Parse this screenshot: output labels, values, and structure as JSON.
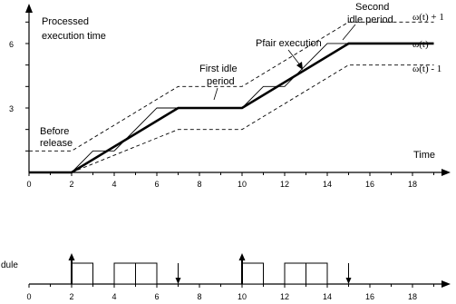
{
  "annotations": {
    "processed_line1": "Processed",
    "processed_line2": "execution time",
    "before_line1": "Before",
    "before_line2": "release",
    "first_idle_line1": "First idle",
    "first_idle_line2": "period",
    "second_idle_line1": "Second",
    "second_idle_line2": "idle period",
    "pfair": "Pfair execution",
    "time": "Time",
    "schedule_label": "dule"
  },
  "legend": {
    "upper": "ω(t) + 1",
    "middle": "ω(t)",
    "lower": "ω(t) - 1"
  },
  "axes": {
    "x_ticks": [
      "0",
      "2",
      "4",
      "6",
      "8",
      "10",
      "12",
      "14",
      "16",
      "18"
    ],
    "y_ticks": [
      "3",
      "6"
    ]
  },
  "chart_data": {
    "type": "line",
    "xlabel": "Time",
    "ylabel": "Processed execution time",
    "xlim": [
      0,
      19
    ],
    "ylim": [
      0,
      7.5
    ],
    "series": [
      {
        "name": "ω(t)",
        "points": [
          [
            0,
            0
          ],
          [
            2,
            0
          ],
          [
            7,
            3
          ],
          [
            10,
            3
          ],
          [
            15,
            6
          ],
          [
            19,
            6
          ]
        ]
      },
      {
        "name": "ω(t) + 1",
        "points": [
          [
            0,
            1
          ],
          [
            2,
            1
          ],
          [
            7,
            4
          ],
          [
            10,
            4
          ],
          [
            15,
            7
          ],
          [
            19,
            7
          ]
        ]
      },
      {
        "name": "ω(t) - 1",
        "points": [
          [
            2,
            0
          ],
          [
            7,
            2
          ],
          [
            10,
            2
          ],
          [
            15,
            5
          ],
          [
            19,
            5
          ]
        ]
      },
      {
        "points": [
          [
            0,
            0
          ],
          [
            2,
            0
          ],
          [
            3,
            1
          ],
          [
            4,
            1
          ],
          [
            6,
            3
          ],
          [
            10,
            3
          ],
          [
            11,
            4
          ],
          [
            12,
            4
          ],
          [
            14,
            6
          ],
          [
            19,
            6
          ]
        ]
      }
    ],
    "schedule": {
      "quanta": [
        [
          2,
          3
        ],
        [
          4,
          5
        ],
        [
          5,
          6
        ],
        [
          10,
          11
        ],
        [
          12,
          13
        ],
        [
          13,
          14
        ]
      ],
      "release_arrows": [
        2,
        10
      ],
      "deadline_arrows": [
        7,
        15
      ]
    }
  }
}
